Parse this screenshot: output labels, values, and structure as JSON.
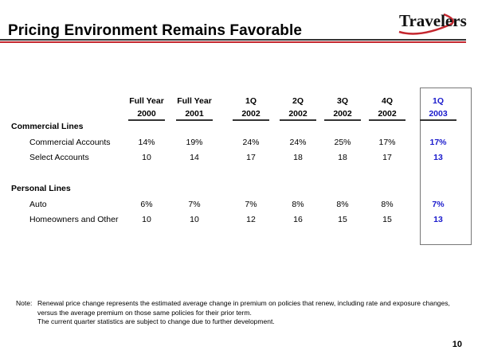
{
  "title": "Pricing Environment Remains Favorable",
  "logo": {
    "text": "Travelers",
    "brand_color": "#c4262e"
  },
  "table": {
    "columns": [
      {
        "line1": "Full Year",
        "line2": "2000"
      },
      {
        "line1": "Full Year",
        "line2": "2001"
      },
      {
        "line1": "1Q",
        "line2": "2002"
      },
      {
        "line1": "2Q",
        "line2": "2002"
      },
      {
        "line1": "3Q",
        "line2": "2002"
      },
      {
        "line1": "4Q",
        "line2": "2002"
      },
      {
        "line1": "1Q",
        "line2": "2003",
        "highlight": true
      }
    ],
    "sections": [
      {
        "label": "Commercial Lines",
        "rows": [
          {
            "label": "Commercial Accounts",
            "values": [
              "14%",
              "19%",
              "24%",
              "24%",
              "25%",
              "17%",
              "17%"
            ]
          },
          {
            "label": "Select Accounts",
            "values": [
              "10",
              "14",
              "17",
              "18",
              "18",
              "17",
              "13"
            ]
          }
        ]
      },
      {
        "label": "Personal Lines",
        "rows": [
          {
            "label": "Auto",
            "values": [
              "6%",
              "7%",
              "7%",
              "8%",
              "8%",
              "8%",
              "7%"
            ]
          },
          {
            "label": "Homeowners and Other",
            "values": [
              "10",
              "10",
              "12",
              "16",
              "15",
              "15",
              "13"
            ]
          }
        ]
      }
    ],
    "highlight_color": "#1a1acc"
  },
  "note": {
    "prefix": "Note:",
    "line1": "Renewal price change represents the estimated average change in premium on policies that renew, including rate and exposure changes,",
    "line2": "versus the average premium on those same policies for their prior term.",
    "line3": "The current quarter statistics are subject to change due to further development."
  },
  "page_number": "10"
}
